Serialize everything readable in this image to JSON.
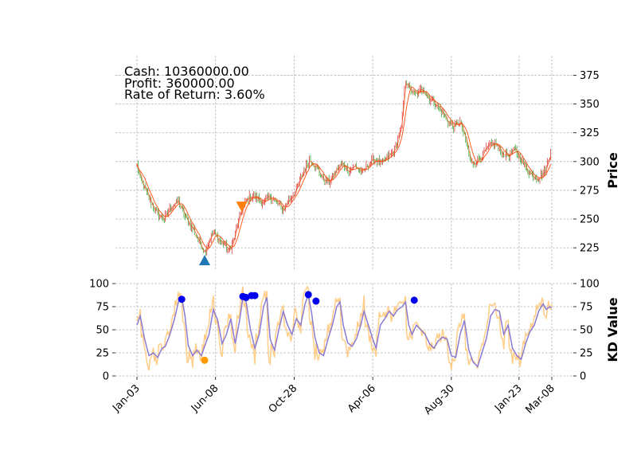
{
  "info": {
    "cash": "Cash: 10360000.00",
    "profit": "Profit: 360000.00",
    "return": "Rate of Return: 3.60%"
  },
  "chart_data": [
    {
      "type": "line",
      "panel": "price",
      "ylabel": "Price",
      "ylim": [
        205,
        392
      ],
      "y_ticks": [
        225,
        250,
        275,
        300,
        325,
        350,
        375
      ],
      "y_axis_side": "right",
      "grid": true,
      "colors": {
        "candle_up": "#d62728",
        "candle_down": "#2ca02c",
        "ma": "#ff4500"
      },
      "anchors": [
        [
          0,
          297
        ],
        [
          3,
          285
        ],
        [
          10,
          270
        ],
        [
          18,
          255
        ],
        [
          25,
          250
        ],
        [
          32,
          262
        ],
        [
          38,
          265
        ],
        [
          45,
          250
        ],
        [
          52,
          240
        ],
        [
          58,
          228
        ],
        [
          62,
          222
        ],
        [
          66,
          232
        ],
        [
          70,
          238
        ],
        [
          75,
          232
        ],
        [
          80,
          228
        ],
        [
          84,
          222
        ],
        [
          88,
          230
        ],
        [
          92,
          245
        ],
        [
          96,
          258
        ],
        [
          100,
          266
        ],
        [
          104,
          270
        ],
        [
          110,
          268
        ],
        [
          116,
          264
        ],
        [
          122,
          270
        ],
        [
          128,
          264
        ],
        [
          134,
          258
        ],
        [
          140,
          268
        ],
        [
          146,
          275
        ],
        [
          152,
          290
        ],
        [
          158,
          302
        ],
        [
          164,
          296
        ],
        [
          170,
          285
        ],
        [
          176,
          282
        ],
        [
          182,
          292
        ],
        [
          188,
          298
        ],
        [
          194,
          292
        ],
        [
          200,
          296
        ],
        [
          206,
          290
        ],
        [
          212,
          298
        ],
        [
          218,
          302
        ],
        [
          224,
          298
        ],
        [
          230,
          304
        ],
        [
          236,
          310
        ],
        [
          242,
          330
        ],
        [
          246,
          372
        ],
        [
          250,
          362
        ],
        [
          256,
          358
        ],
        [
          262,
          364
        ],
        [
          266,
          356
        ],
        [
          272,
          352
        ],
        [
          278,
          345
        ],
        [
          284,
          336
        ],
        [
          290,
          330
        ],
        [
          296,
          335
        ],
        [
          302,
          315
        ],
        [
          306,
          298
        ],
        [
          310,
          300
        ],
        [
          316,
          305
        ],
        [
          322,
          313
        ],
        [
          328,
          316
        ],
        [
          334,
          308
        ],
        [
          340,
          305
        ],
        [
          346,
          310
        ],
        [
          352,
          302
        ],
        [
          356,
          294
        ],
        [
          362,
          288
        ],
        [
          368,
          286
        ],
        [
          374,
          292
        ],
        [
          377,
          302
        ],
        [
          379,
          310
        ]
      ],
      "markers": [
        {
          "kind": "buy",
          "index": 62,
          "value": 214,
          "color": "#1f77b4"
        },
        {
          "kind": "sell",
          "index": 96,
          "value": 261,
          "color": "#ff7f0e"
        }
      ]
    },
    {
      "type": "line",
      "panel": "kd",
      "ylabel": "KD Value",
      "ylim": [
        0,
        100
      ],
      "y_ticks": [
        0,
        25,
        50,
        75,
        100
      ],
      "y_axis_side": "both",
      "x_tick_labels": [
        "Jan-03",
        "Jun-08",
        "Oct-28",
        "Apr-06",
        "Aug-30",
        "Jan-23",
        "Mar-08"
      ],
      "x_tick_index": [
        0,
        72,
        144,
        216,
        288,
        350,
        380
      ],
      "n_points": 380,
      "colors": {
        "k": "#ffc87a",
        "d": "#8a7ad2"
      },
      "d_anchors": [
        [
          0,
          55
        ],
        [
          3,
          65
        ],
        [
          7,
          40
        ],
        [
          11,
          22
        ],
        [
          15,
          25
        ],
        [
          19,
          20
        ],
        [
          23,
          30
        ],
        [
          26,
          32
        ],
        [
          30,
          44
        ],
        [
          34,
          60
        ],
        [
          38,
          80
        ],
        [
          41,
          85
        ],
        [
          44,
          65
        ],
        [
          47,
          33
        ],
        [
          51,
          22
        ],
        [
          55,
          28
        ],
        [
          59,
          22
        ],
        [
          62,
          32
        ],
        [
          66,
          45
        ],
        [
          70,
          72
        ],
        [
          74,
          60
        ],
        [
          78,
          35
        ],
        [
          82,
          45
        ],
        [
          86,
          62
        ],
        [
          90,
          35
        ],
        [
          94,
          60
        ],
        [
          97,
          85
        ],
        [
          100,
          80
        ],
        [
          104,
          50
        ],
        [
          108,
          30
        ],
        [
          112,
          45
        ],
        [
          116,
          75
        ],
        [
          119,
          85
        ],
        [
          122,
          40
        ],
        [
          126,
          28
        ],
        [
          130,
          50
        ],
        [
          134,
          70
        ],
        [
          138,
          55
        ],
        [
          142,
          45
        ],
        [
          146,
          62
        ],
        [
          150,
          55
        ],
        [
          154,
          78
        ],
        [
          157,
          88
        ],
        [
          160,
          68
        ],
        [
          163,
          42
        ],
        [
          167,
          25
        ],
        [
          171,
          22
        ],
        [
          175,
          40
        ],
        [
          179,
          55
        ],
        [
          183,
          75
        ],
        [
          186,
          80
        ],
        [
          189,
          55
        ],
        [
          193,
          36
        ],
        [
          197,
          32
        ],
        [
          201,
          40
        ],
        [
          205,
          55
        ],
        [
          208,
          70
        ],
        [
          212,
          55
        ],
        [
          216,
          40
        ],
        [
          219,
          30
        ],
        [
          223,
          55
        ],
        [
          227,
          62
        ],
        [
          231,
          70
        ],
        [
          235,
          65
        ],
        [
          239,
          72
        ],
        [
          243,
          75
        ],
        [
          246,
          80
        ],
        [
          249,
          55
        ],
        [
          252,
          45
        ],
        [
          256,
          55
        ],
        [
          260,
          50
        ],
        [
          264,
          45
        ],
        [
          268,
          35
        ],
        [
          272,
          30
        ],
        [
          276,
          38
        ],
        [
          280,
          42
        ],
        [
          284,
          40
        ],
        [
          288,
          22
        ],
        [
          292,
          20
        ],
        [
          296,
          45
        ],
        [
          300,
          60
        ],
        [
          304,
          28
        ],
        [
          308,
          15
        ],
        [
          312,
          10
        ],
        [
          316,
          25
        ],
        [
          320,
          40
        ],
        [
          324,
          65
        ],
        [
          328,
          72
        ],
        [
          332,
          70
        ],
        [
          336,
          45
        ],
        [
          340,
          55
        ],
        [
          344,
          30
        ],
        [
          348,
          22
        ],
        [
          352,
          18
        ],
        [
          356,
          35
        ],
        [
          360,
          48
        ],
        [
          364,
          55
        ],
        [
          368,
          70
        ],
        [
          372,
          78
        ],
        [
          375,
          72
        ],
        [
          378,
          75
        ],
        [
          380,
          74
        ]
      ],
      "markers": [
        {
          "kind": "overbought",
          "index": 41,
          "value": 83,
          "color": "#0000ee"
        },
        {
          "kind": "overbought",
          "index": 97,
          "value": 86,
          "color": "#0000ee"
        },
        {
          "kind": "overbought",
          "index": 100,
          "value": 85,
          "color": "#0000ee"
        },
        {
          "kind": "overbought",
          "index": 105,
          "value": 87,
          "color": "#0000ee"
        },
        {
          "kind": "overbought",
          "index": 108,
          "value": 87,
          "color": "#0000ee"
        },
        {
          "kind": "overbought",
          "index": 157,
          "value": 88,
          "color": "#0000ee"
        },
        {
          "kind": "overbought",
          "index": 164,
          "value": 81,
          "color": "#0000ee"
        },
        {
          "kind": "overbought",
          "index": 254,
          "value": 82,
          "color": "#0000ee"
        },
        {
          "kind": "oversold",
          "index": 62,
          "value": 17,
          "color": "#ff9900"
        }
      ]
    }
  ]
}
